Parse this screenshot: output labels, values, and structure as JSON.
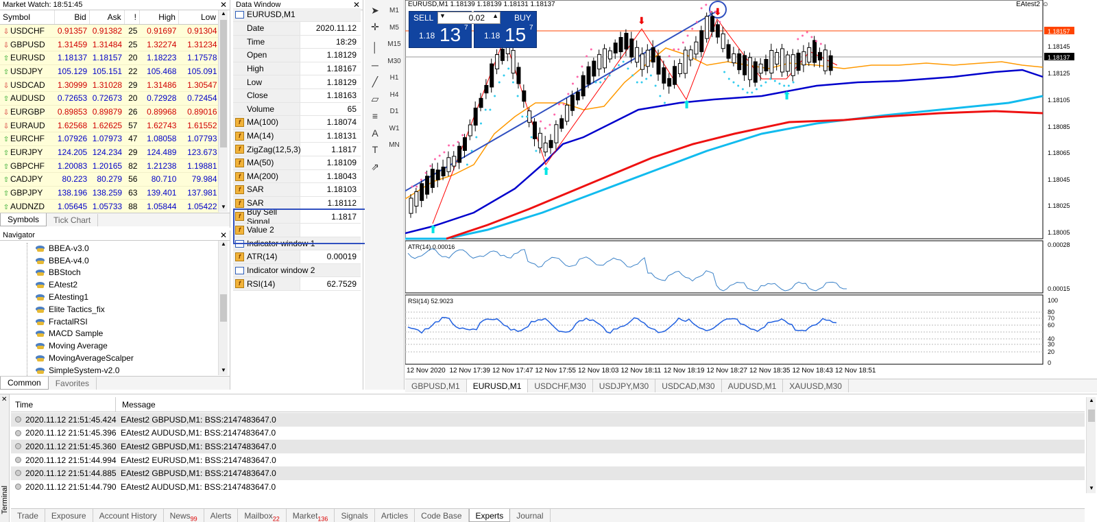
{
  "market_watch": {
    "title": "Market Watch: 18:51:45",
    "columns": [
      "Symbol",
      "Bid",
      "Ask",
      "!",
      "High",
      "Low"
    ],
    "rows": [
      {
        "symbol": "USDCHF",
        "dir": "down",
        "bid": "0.91357",
        "ask": "0.91382",
        "spread": "25",
        "high": "0.91697",
        "low": "0.91304"
      },
      {
        "symbol": "GBPUSD",
        "dir": "down",
        "bid": "1.31459",
        "ask": "1.31484",
        "spread": "25",
        "high": "1.32274",
        "low": "1.31234"
      },
      {
        "symbol": "EURUSD",
        "dir": "up",
        "bid": "1.18137",
        "ask": "1.18157",
        "spread": "20",
        "high": "1.18223",
        "low": "1.17578"
      },
      {
        "symbol": "USDJPY",
        "dir": "up",
        "bid": "105.129",
        "ask": "105.151",
        "spread": "22",
        "high": "105.468",
        "low": "105.091"
      },
      {
        "symbol": "USDCAD",
        "dir": "down",
        "bid": "1.30999",
        "ask": "1.31028",
        "spread": "29",
        "high": "1.31486",
        "low": "1.30547"
      },
      {
        "symbol": "AUDUSD",
        "dir": "up",
        "bid": "0.72653",
        "ask": "0.72673",
        "spread": "20",
        "high": "0.72928",
        "low": "0.72454"
      },
      {
        "symbol": "EURGBP",
        "dir": "down",
        "bid": "0.89853",
        "ask": "0.89879",
        "spread": "26",
        "high": "0.89968",
        "low": "0.89016"
      },
      {
        "symbol": "EURAUD",
        "dir": "down",
        "bid": "1.62568",
        "ask": "1.62625",
        "spread": "57",
        "high": "1.62743",
        "low": "1.61552"
      },
      {
        "symbol": "EURCHF",
        "dir": "up",
        "bid": "1.07926",
        "ask": "1.07973",
        "spread": "47",
        "high": "1.08058",
        "low": "1.07793"
      },
      {
        "symbol": "EURJPY",
        "dir": "up",
        "bid": "124.205",
        "ask": "124.234",
        "spread": "29",
        "high": "124.489",
        "low": "123.673"
      },
      {
        "symbol": "GBPCHF",
        "dir": "up",
        "bid": "1.20083",
        "ask": "1.20165",
        "spread": "82",
        "high": "1.21238",
        "low": "1.19881"
      },
      {
        "symbol": "CADJPY",
        "dir": "up",
        "bid": "80.223",
        "ask": "80.279",
        "spread": "56",
        "high": "80.710",
        "low": "79.984"
      },
      {
        "symbol": "GBPJPY",
        "dir": "up",
        "bid": "138.196",
        "ask": "138.259",
        "spread": "63",
        "high": "139.401",
        "low": "137.981"
      },
      {
        "symbol": "AUDNZD",
        "dir": "up",
        "bid": "1.05645",
        "ask": "1.05733",
        "spread": "88",
        "high": "1.05844",
        "low": "1.05422"
      }
    ],
    "tabs": [
      "Symbols",
      "Tick Chart"
    ]
  },
  "navigator": {
    "title": "Navigator",
    "items": [
      "BBEA-v3.0",
      "BBEA-v4.0",
      "BBStoch",
      "EAtest2",
      "EAtesting1",
      "Elite Tactics_fix",
      "FractalRSI",
      "MACD Sample",
      "Moving Average",
      "MovingAverageScalper",
      "SimpleSystem-v2.0"
    ],
    "tabs": [
      "Common",
      "Favorites"
    ]
  },
  "data_window": {
    "title": "Data Window",
    "symbol": "EURUSD,M1",
    "rows": [
      {
        "k": "Date",
        "v": "2020.11.12",
        "type": "plain"
      },
      {
        "k": "Time",
        "v": "18:29",
        "type": "plain"
      },
      {
        "k": "Open",
        "v": "1.18129",
        "type": "plain"
      },
      {
        "k": "High",
        "v": "1.18167",
        "type": "plain"
      },
      {
        "k": "Low",
        "v": "1.18129",
        "type": "plain"
      },
      {
        "k": "Close",
        "v": "1.18163",
        "type": "plain"
      },
      {
        "k": "Volume",
        "v": "65",
        "type": "plain"
      },
      {
        "k": "MA(100)",
        "v": "1.18074",
        "type": "ind"
      },
      {
        "k": "MA(14)",
        "v": "1.18131",
        "type": "ind"
      },
      {
        "k": "ZigZag(12,5,3)",
        "v": "1.1817",
        "type": "ind"
      },
      {
        "k": "MA(50)",
        "v": "1.18109",
        "type": "ind"
      },
      {
        "k": "MA(200)",
        "v": "1.18043",
        "type": "ind"
      },
      {
        "k": "SAR",
        "v": "1.18103",
        "type": "ind"
      },
      {
        "k": "SAR",
        "v": "1.18112",
        "type": "ind"
      },
      {
        "k": "Buy Sell Signal",
        "v": "1.1817",
        "type": "ind"
      },
      {
        "k": "Value 2",
        "v": "",
        "type": "ind"
      },
      {
        "k": "Indicator window 1",
        "v": "",
        "type": "win"
      },
      {
        "k": "ATR(14)",
        "v": "0.00019",
        "type": "ind"
      },
      {
        "k": "Indicator window 2",
        "v": "",
        "type": "win"
      },
      {
        "k": "RSI(14)",
        "v": "62.7529",
        "type": "ind"
      }
    ]
  },
  "toolbar": {
    "timeframes": [
      "M1",
      "M5",
      "M15",
      "M30",
      "H1",
      "H4",
      "D1",
      "W1",
      "MN"
    ]
  },
  "chart": {
    "header": "EURUSD,M1  1.18139 1.18139 1.18131 1.18137",
    "ea_label": "EAtest2",
    "sell_label": "SELL",
    "buy_label": "BUY",
    "lot": "0.02",
    "sell_prefix": "1.18",
    "sell_big": "13",
    "sell_sup": "7",
    "buy_prefix": "1.18",
    "buy_big": "15",
    "buy_sup": "7",
    "price_labels": [
      "1.18157",
      "1.18145",
      "1.18137",
      "1.18125",
      "1.18105",
      "1.18085",
      "1.18065",
      "1.18045",
      "1.18025",
      "1.18005"
    ],
    "atr_label": "ATR(14) 0.00016",
    "atr_scale": [
      "0.00028",
      "0.00015"
    ],
    "rsi_label": "RSI(14) 52.9023",
    "rsi_scale": [
      "100",
      "80",
      "70",
      "60",
      "40",
      "30",
      "20",
      "0"
    ],
    "time_labels": [
      "12 Nov 2020",
      "12 Nov 17:39",
      "12 Nov 17:47",
      "12 Nov 17:55",
      "12 Nov 18:03",
      "12 Nov 18:11",
      "12 Nov 18:19",
      "12 Nov 18:27",
      "12 Nov 18:35",
      "12 Nov 18:43",
      "12 Nov 18:51"
    ],
    "colors": {
      "ma_orange": "#ff9900",
      "ma_blue": "#0000cc",
      "ma_red": "#ee1111",
      "ma_cyan": "#11bbee",
      "sar_pink": "#ff66aa",
      "sar_cyan": "#33ccee",
      "ask_line": "#ff4400",
      "zigzag": "#ff0000"
    }
  },
  "chart_tabs": [
    "GBPUSD,M1",
    "EURUSD,M1",
    "USDCHF,M30",
    "USDJPY,M30",
    "USDCAD,M30",
    "AUDUSD,M1",
    "XAUUSD,M30"
  ],
  "terminal": {
    "side_label": "Terminal",
    "col_time": "Time",
    "col_message": "Message",
    "rows": [
      {
        "time": "2020.11.12 21:51:45.424",
        "message": "EAtest2 GBPUSD,M1: BSS:2147483647.0"
      },
      {
        "time": "2020.11.12 21:51:45.396",
        "message": "EAtest2 AUDUSD,M1: BSS:2147483647.0"
      },
      {
        "time": "2020.11.12 21:51:45.360",
        "message": "EAtest2 GBPUSD,M1: BSS:2147483647.0"
      },
      {
        "time": "2020.11.12 21:51:44.994",
        "message": "EAtest2 EURUSD,M1: BSS:2147483647.0"
      },
      {
        "time": "2020.11.12 21:51:44.885",
        "message": "EAtest2 GBPUSD,M1: BSS:2147483647.0"
      },
      {
        "time": "2020.11.12 21:51:44.790",
        "message": "EAtest2 AUDUSD,M1: BSS:2147483647.0"
      }
    ],
    "tabs": [
      {
        "label": "Trade",
        "badge": ""
      },
      {
        "label": "Exposure",
        "badge": ""
      },
      {
        "label": "Account History",
        "badge": ""
      },
      {
        "label": "News",
        "badge": "99"
      },
      {
        "label": "Alerts",
        "badge": ""
      },
      {
        "label": "Mailbox",
        "badge": "22"
      },
      {
        "label": "Market",
        "badge": "136"
      },
      {
        "label": "Signals",
        "badge": ""
      },
      {
        "label": "Articles",
        "badge": ""
      },
      {
        "label": "Code Base",
        "badge": ""
      },
      {
        "label": "Experts",
        "badge": ""
      },
      {
        "label": "Journal",
        "badge": ""
      }
    ],
    "active_tab": "Experts"
  }
}
